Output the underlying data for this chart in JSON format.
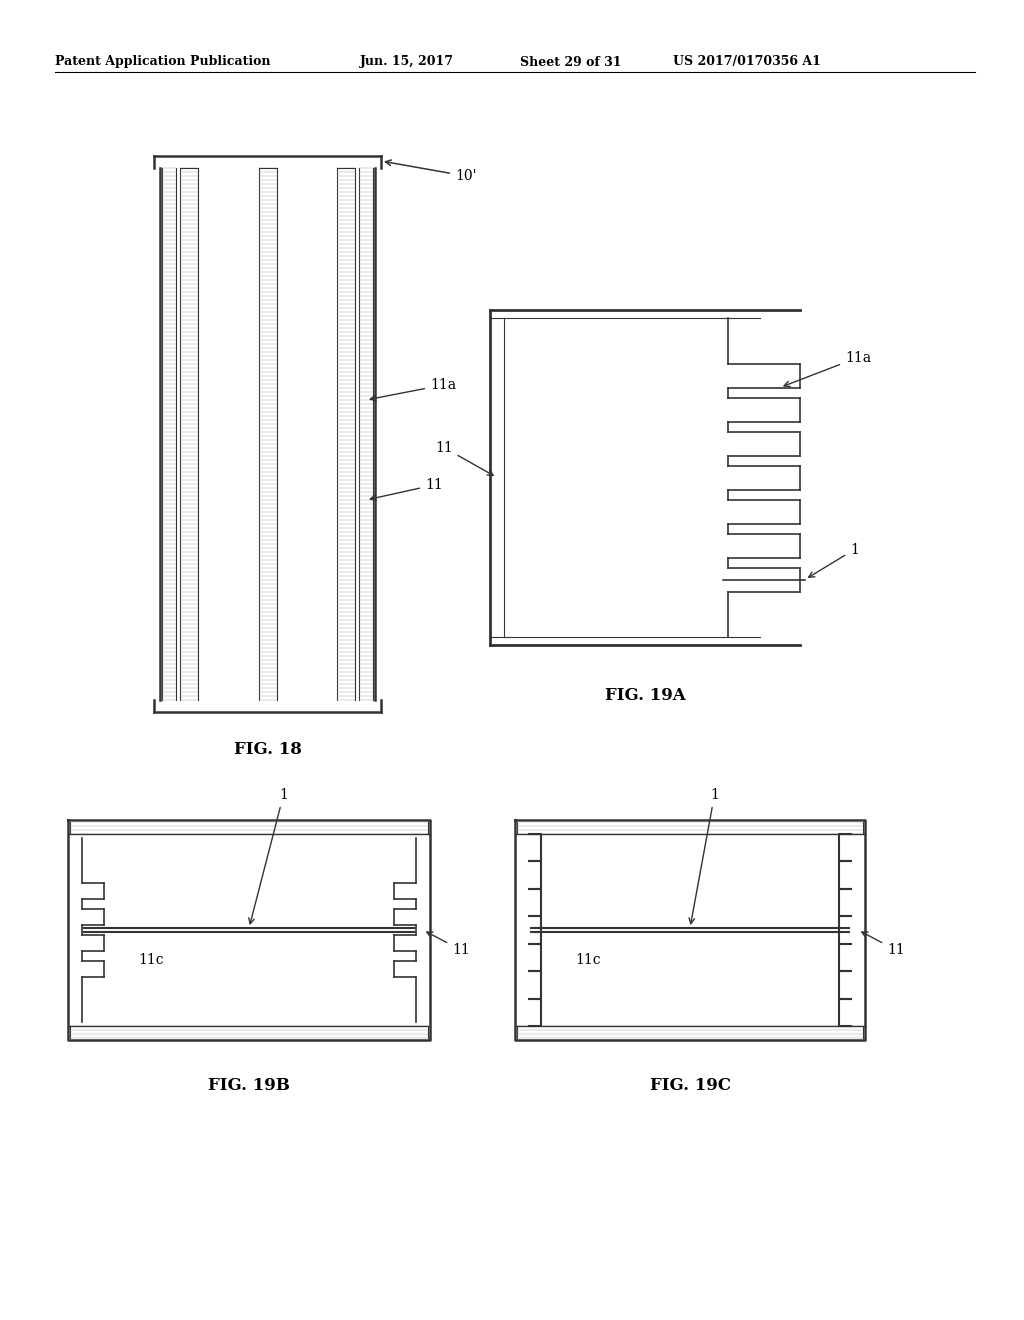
{
  "bg_color": "#ffffff",
  "header_text": "Patent Application Publication",
  "header_date": "Jun. 15, 2017",
  "header_sheet": "Sheet 29 of 31",
  "header_patent": "US 2017/0170356 A1",
  "fig18_label": "FIG. 18",
  "fig19a_label": "FIG. 19A",
  "fig19b_label": "FIG. 19B",
  "fig19c_label": "FIG. 19C",
  "lc": "#333333"
}
